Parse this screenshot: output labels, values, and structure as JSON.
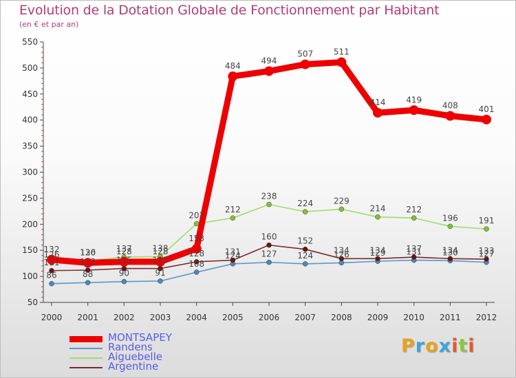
{
  "title": "Evolution de la Dotation Globale de Fonctionnement par Habitant",
  "subtitle": "(en € et par an)",
  "logo": {
    "text": "Proxiti",
    "letters": [
      {
        "ch": "P",
        "color": "#e8a21e"
      },
      {
        "ch": "r",
        "color": "#3fa3d8"
      },
      {
        "ch": "o",
        "color": "#e8a21e"
      },
      {
        "ch": "x",
        "color": "#3fa3d8"
      },
      {
        "ch": "i",
        "color": "#e05a2a"
      },
      {
        "ch": "t",
        "color": "#8cc63f"
      },
      {
        "ch": "i",
        "color": "#e05a2a"
      }
    ]
  },
  "chart_data": {
    "type": "line",
    "title": "Evolution de la Dotation Globale de Fonctionnement par Habitant",
    "subtitle": "(en € et par an)",
    "xlabel": "",
    "ylabel": "",
    "ylim": [
      50,
      550
    ],
    "yticks": [
      50,
      100,
      150,
      200,
      250,
      300,
      350,
      400,
      450,
      500,
      550
    ],
    "grid": false,
    "legend_position": "bottom-left",
    "categories": [
      "2000",
      "2001",
      "2002",
      "2003",
      "2004",
      "2005",
      "2006",
      "2007",
      "2008",
      "2009",
      "2010",
      "2011",
      "2012"
    ],
    "series": [
      {
        "name": "Randens",
        "color": "#5b97c9",
        "dot": "#4a88c2",
        "values": [
          86,
          88,
          90,
          91,
          108,
          124,
          127,
          124,
          126,
          129,
          131,
          130,
          127
        ]
      },
      {
        "name": "Aiguebelle",
        "color": "#a6d96a",
        "dot": "#7fc23c",
        "values": [
          126,
          130,
          137,
          138,
          201,
          212,
          238,
          224,
          229,
          214,
          212,
          196,
          191
        ]
      },
      {
        "name": "Argentine",
        "color": "#7a2a2a",
        "dot": "#6b1515",
        "values": [
          111,
          112,
          115,
          115,
          128,
          131,
          160,
          152,
          134,
          134,
          137,
          134,
          133
        ]
      },
      {
        "name": "MONTSAPEY",
        "color": "#ee0000",
        "dot": "#ee0000",
        "values": [
          132,
          126,
          128,
          128,
          153,
          484,
          494,
          507,
          511,
          414,
          419,
          408,
          401
        ]
      }
    ],
    "legend_order": [
      "MONTSAPEY",
      "Randens",
      "Aiguebelle",
      "Argentine"
    ]
  }
}
